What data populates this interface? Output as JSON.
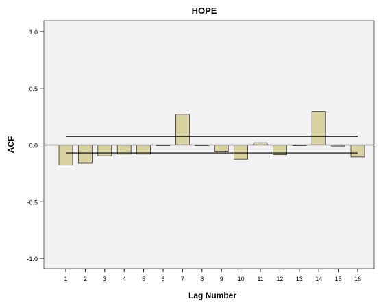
{
  "chart_data": {
    "type": "bar",
    "title": "HOPE",
    "xlabel": "Lag Number",
    "ylabel": "ACF",
    "categories": [
      "1",
      "2",
      "3",
      "4",
      "5",
      "6",
      "7",
      "8",
      "9",
      "10",
      "11",
      "12",
      "13",
      "14",
      "15",
      "16"
    ],
    "values": [
      -0.175,
      -0.16,
      -0.095,
      -0.08,
      -0.08,
      0.0,
      0.27,
      0.0,
      -0.06,
      -0.125,
      0.02,
      -0.085,
      0.0,
      0.295,
      -0.01,
      -0.105
    ],
    "confidence_limits": {
      "upper": 0.075,
      "lower": -0.07
    },
    "yticks": [
      "-1.0",
      "-0.5",
      "0.0",
      "0.5",
      "1.0"
    ],
    "ylim": [
      -1.0,
      1.0
    ],
    "grid": false,
    "legend": "none",
    "colors": {
      "bar_fill": "#d8d1a0",
      "bar_stroke": "#333333",
      "plot_bg": "#f2f2f2",
      "axis": "#000000"
    }
  }
}
